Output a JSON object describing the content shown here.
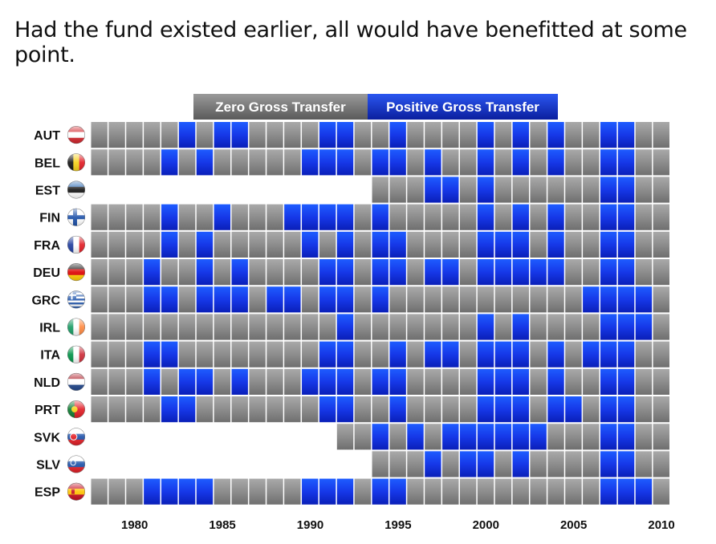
{
  "title": "Had the fund existed earlier, all would have benefitted at some point.",
  "chart_data": {
    "type": "heatmap",
    "title": "Had the fund existed earlier, all would have benefitted at some point.",
    "legend": [
      {
        "label": "Zero Gross Transfer",
        "color": "#8c8c8c",
        "value": 0
      },
      {
        "label": "Positive Gross Transfer",
        "color": "#1a3ee6",
        "value": 1
      }
    ],
    "legend_position": "top",
    "x_start": 1978,
    "x_end": 2010,
    "x_ticks": [
      "1980",
      "1985",
      "1990",
      "1995",
      "2000",
      "2005",
      "2010"
    ],
    "colors": {
      "zero": "#8c8c8c",
      "positive": "#1a3ee6",
      "empty": "#ffffff"
    },
    "rows": [
      {
        "country": "AUT",
        "flag": "austria-flag",
        "start": 1978,
        "positive": [
          1983,
          1985,
          1986,
          1991,
          1992,
          1995,
          2000,
          2002,
          2004,
          2007,
          2008
        ]
      },
      {
        "country": "BEL",
        "flag": "belgium-flag",
        "start": 1978,
        "positive": [
          1982,
          1984,
          1990,
          1991,
          1992,
          1994,
          1995,
          1997,
          2000,
          2002,
          2004,
          2007,
          2008
        ]
      },
      {
        "country": "EST",
        "flag": "estonia-flag",
        "start": 1994,
        "positive": [
          1997,
          1998,
          2000,
          2007,
          2008
        ]
      },
      {
        "country": "FIN",
        "flag": "finland-flag",
        "start": 1978,
        "positive": [
          1982,
          1985,
          1989,
          1990,
          1991,
          1992,
          1994,
          2000,
          2002,
          2004,
          2007,
          2008
        ]
      },
      {
        "country": "FRA",
        "flag": "france-flag",
        "start": 1978,
        "positive": [
          1982,
          1984,
          1990,
          1992,
          1994,
          1995,
          2000,
          2001,
          2002,
          2004,
          2007,
          2008
        ]
      },
      {
        "country": "DEU",
        "flag": "germany-flag",
        "start": 1978,
        "positive": [
          1981,
          1984,
          1986,
          1991,
          1992,
          1994,
          1995,
          1997,
          1998,
          2000,
          2001,
          2002,
          2003,
          2004,
          2007,
          2008
        ]
      },
      {
        "country": "GRC",
        "flag": "greece-flag",
        "start": 1978,
        "positive": [
          1981,
          1982,
          1984,
          1985,
          1986,
          1988,
          1989,
          1991,
          1992,
          1994,
          2006,
          2007,
          2008,
          2009
        ]
      },
      {
        "country": "IRL",
        "flag": "ireland-flag",
        "start": 1978,
        "positive": [
          1992,
          2000,
          2002,
          2007,
          2008,
          2009
        ]
      },
      {
        "country": "ITA",
        "flag": "italy-flag",
        "start": 1978,
        "positive": [
          1981,
          1982,
          1991,
          1992,
          1995,
          1997,
          1998,
          2000,
          2001,
          2002,
          2004,
          2006,
          2007,
          2008
        ]
      },
      {
        "country": "NLD",
        "flag": "netherlands-flag",
        "start": 1978,
        "positive": [
          1981,
          1983,
          1984,
          1986,
          1990,
          1991,
          1992,
          1994,
          1995,
          2000,
          2001,
          2002,
          2004,
          2007,
          2008
        ]
      },
      {
        "country": "PRT",
        "flag": "portugal-flag",
        "start": 1978,
        "positive": [
          1982,
          1983,
          1991,
          1992,
          1995,
          2000,
          2001,
          2002,
          2004,
          2005,
          2007,
          2008
        ]
      },
      {
        "country": "SVK",
        "flag": "slovakia-flag",
        "start": 1992,
        "positive": [
          1994,
          1996,
          1998,
          1999,
          2000,
          2001,
          2002,
          2003,
          2007,
          2008
        ]
      },
      {
        "country": "SLV",
        "flag": "slovenia-flag",
        "start": 1994,
        "positive": [
          1997,
          1999,
          2000,
          2002,
          2007,
          2008
        ]
      },
      {
        "country": "ESP",
        "flag": "spain-flag",
        "start": 1978,
        "positive": [
          1981,
          1982,
          1983,
          1984,
          1990,
          1991,
          1992,
          1994,
          1995,
          2007,
          2008,
          2009
        ]
      }
    ]
  }
}
